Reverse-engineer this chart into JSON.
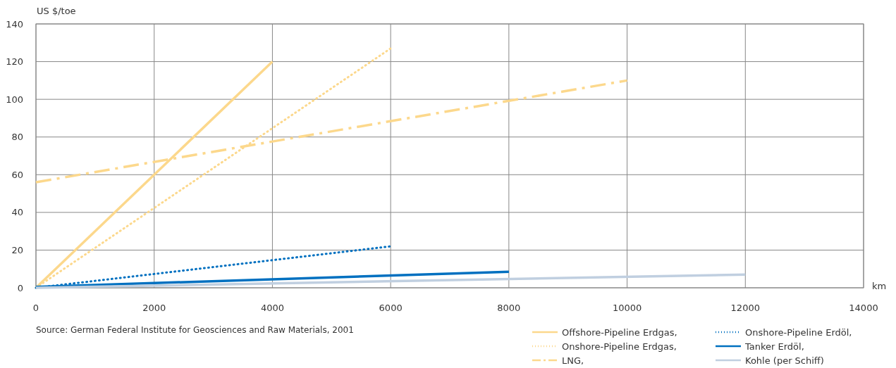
{
  "chart_data": {
    "type": "line",
    "ylabel": "US $/toe",
    "xlabel": "km",
    "xlim": [
      0,
      14000
    ],
    "xticks": [
      0,
      2000,
      4000,
      6000,
      8000,
      10000,
      12000,
      14000
    ],
    "ylim": [
      0,
      140
    ],
    "yticks": [
      0,
      20,
      40,
      60,
      80,
      100,
      120,
      140
    ],
    "grid": true,
    "legend": "bottom right",
    "annotations": [
      "Source: German Federal Institute for Geosciences and Raw Materials, 2001"
    ],
    "series": [
      {
        "name": "Offshore-Pipeline Erdgas,",
        "color": "#fcd88c",
        "line_style": "solid",
        "x": [
          0,
          4000
        ],
        "values": [
          0,
          120
        ]
      },
      {
        "name": "Onshore-Pipeline Erdgas,",
        "color": "#fcd88c",
        "line_style": "dotted",
        "x": [
          0,
          6000
        ],
        "values": [
          0,
          127
        ]
      },
      {
        "name": "LNG,",
        "color": "#fcd88c",
        "line_style": "dashdot",
        "x": [
          0,
          10000
        ],
        "values": [
          56,
          110
        ]
      },
      {
        "name": "Onshore-Pipeline Erdöl,",
        "color": "#0070c0",
        "line_style": "dotted",
        "x": [
          0,
          6000
        ],
        "values": [
          0,
          22
        ]
      },
      {
        "name": "Tanker Erdöl,",
        "color": "#0070c0",
        "line_style": "solid",
        "x": [
          0,
          8000
        ],
        "values": [
          0.5,
          8.5
        ]
      },
      {
        "name": "Kohle (per Schiff)",
        "color": "#c0cfe0",
        "line_style": "solid",
        "x": [
          0,
          12000
        ],
        "values": [
          0,
          7
        ]
      }
    ]
  }
}
